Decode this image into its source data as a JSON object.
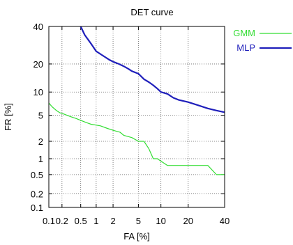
{
  "chart_data": {
    "type": "line",
    "title": "DET curve",
    "xlabel": "FA [%]",
    "ylabel": "FR [%]",
    "x_scale": "normal-deviate",
    "y_scale": "normal-deviate",
    "xlim": [
      0.1,
      40
    ],
    "ylim": [
      0.1,
      40
    ],
    "x_ticks": [
      0.1,
      0.2,
      0.5,
      1,
      2,
      5,
      10,
      20,
      40
    ],
    "x_tick_labels": [
      "0.1",
      "0.2",
      "0.5",
      "1",
      "2",
      "5",
      "10",
      "20",
      "40"
    ],
    "y_ticks": [
      0.1,
      0.2,
      0.5,
      1,
      2,
      5,
      10,
      20,
      40
    ],
    "y_tick_labels": [
      "0.1",
      "0.2",
      "0.5",
      "1",
      "2",
      "5",
      "10",
      "20",
      "40"
    ],
    "grid": "dotted",
    "legend_position": "top-right",
    "series": [
      {
        "name": "GMM",
        "color": "#33dd33",
        "x": [
          0.1,
          0.12,
          0.15,
          0.18,
          0.22,
          0.3,
          0.4,
          0.6,
          0.8,
          1.2,
          1.6,
          2,
          2.6,
          3,
          4,
          5,
          6,
          7,
          8,
          9,
          12,
          15,
          20,
          25,
          30,
          35,
          40
        ],
        "y": [
          7.3,
          6.5,
          5.8,
          5.4,
          5.2,
          4.8,
          4.5,
          4.0,
          3.7,
          3.5,
          3.2,
          3.0,
          2.8,
          2.5,
          2.3,
          2.0,
          2.0,
          1.5,
          1.0,
          1.0,
          0.75,
          0.75,
          0.75,
          0.75,
          0.75,
          0.5,
          0.5
        ]
      },
      {
        "name": "MLP",
        "color": "#1f1fbb",
        "x": [
          0.5,
          0.6,
          0.8,
          1,
          1.3,
          1.7,
          2,
          2.5,
          3,
          3.5,
          4,
          5,
          6,
          7,
          8,
          9,
          10,
          12,
          14,
          16,
          20,
          25,
          30,
          35,
          40
        ],
        "y": [
          40,
          35,
          30,
          26,
          24,
          22,
          21,
          20,
          19,
          18,
          17,
          16,
          14,
          13,
          12,
          11,
          10,
          9.5,
          8.5,
          8.0,
          7.5,
          6.8,
          6.2,
          5.8,
          5.5
        ]
      }
    ]
  }
}
